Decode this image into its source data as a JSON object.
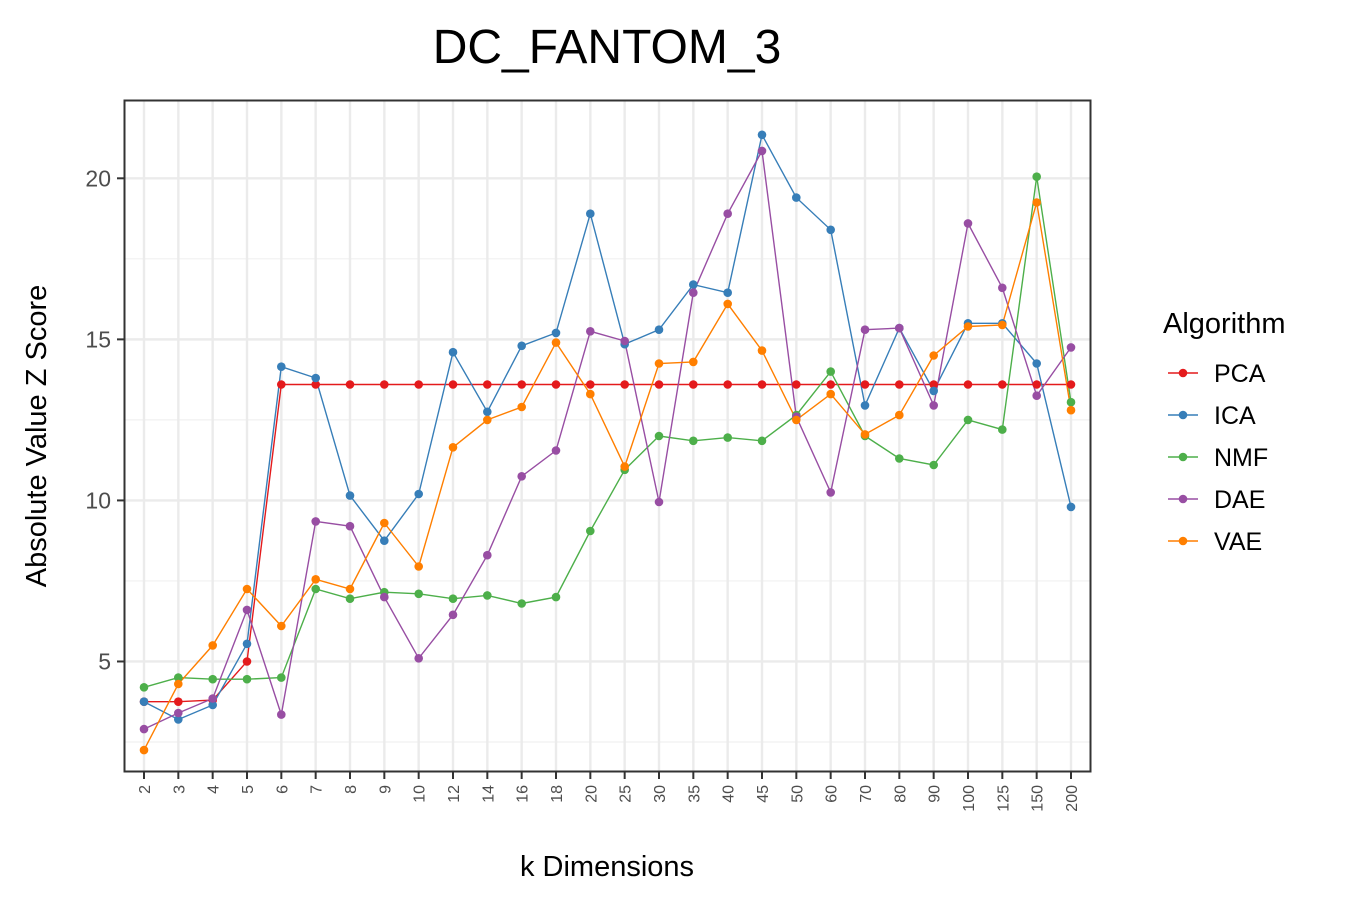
{
  "chart_data": {
    "type": "line",
    "title": "DC_FANTOM_3",
    "xlabel": "k Dimensions",
    "ylabel": "Absolute Value Z Score",
    "categories": [
      "2",
      "3",
      "4",
      "5",
      "6",
      "7",
      "8",
      "9",
      "10",
      "12",
      "14",
      "16",
      "18",
      "20",
      "25",
      "30",
      "35",
      "40",
      "45",
      "50",
      "60",
      "70",
      "80",
      "90",
      "100",
      "125",
      "150",
      "200"
    ],
    "yticks": [
      5,
      10,
      15,
      20
    ],
    "ylim": [
      1.6,
      22.4
    ],
    "grid": true,
    "legend": {
      "title": "Algorithm",
      "position": "right"
    },
    "series": [
      {
        "name": "PCA",
        "color": "#e41a1c",
        "values": [
          3.75,
          3.75,
          3.8,
          5.0,
          13.6,
          13.6,
          13.6,
          13.6,
          13.6,
          13.6,
          13.6,
          13.6,
          13.6,
          13.6,
          13.6,
          13.6,
          13.6,
          13.6,
          13.6,
          13.6,
          13.6,
          13.6,
          13.6,
          13.6,
          13.6,
          13.6,
          13.6,
          13.6
        ]
      },
      {
        "name": "ICA",
        "color": "#377eb8",
        "values": [
          3.75,
          3.2,
          3.65,
          5.55,
          14.15,
          13.8,
          10.15,
          8.75,
          10.2,
          14.6,
          12.75,
          14.8,
          15.2,
          18.9,
          14.85,
          15.3,
          16.7,
          16.45,
          21.35,
          19.4,
          18.4,
          12.95,
          15.35,
          13.4,
          15.5,
          15.5,
          14.25,
          9.8
        ]
      },
      {
        "name": "NMF",
        "color": "#4daf4a",
        "values": [
          4.2,
          4.5,
          4.45,
          4.45,
          4.5,
          7.25,
          6.95,
          7.15,
          7.1,
          6.95,
          7.05,
          6.8,
          7.0,
          9.05,
          10.95,
          12.0,
          11.85,
          11.95,
          11.85,
          12.65,
          14.0,
          12.0,
          11.3,
          11.1,
          12.5,
          12.2,
          20.05,
          13.05
        ]
      },
      {
        "name": "DAE",
        "color": "#984ea3",
        "values": [
          2.9,
          3.4,
          3.85,
          6.6,
          3.35,
          9.35,
          9.2,
          7.0,
          5.1,
          6.45,
          8.3,
          10.75,
          11.55,
          15.25,
          14.95,
          9.95,
          16.45,
          18.9,
          20.85,
          12.6,
          10.25,
          15.3,
          15.35,
          12.95,
          18.6,
          16.6,
          13.25,
          14.75
        ]
      },
      {
        "name": "VAE",
        "color": "#ff7f00",
        "values": [
          2.25,
          4.3,
          5.5,
          7.25,
          6.1,
          7.55,
          7.25,
          9.3,
          7.95,
          11.65,
          12.5,
          12.9,
          14.9,
          13.3,
          11.05,
          14.25,
          14.3,
          16.1,
          14.65,
          12.5,
          13.3,
          12.05,
          12.65,
          14.5,
          15.4,
          15.45,
          19.25,
          12.8
        ]
      }
    ]
  }
}
